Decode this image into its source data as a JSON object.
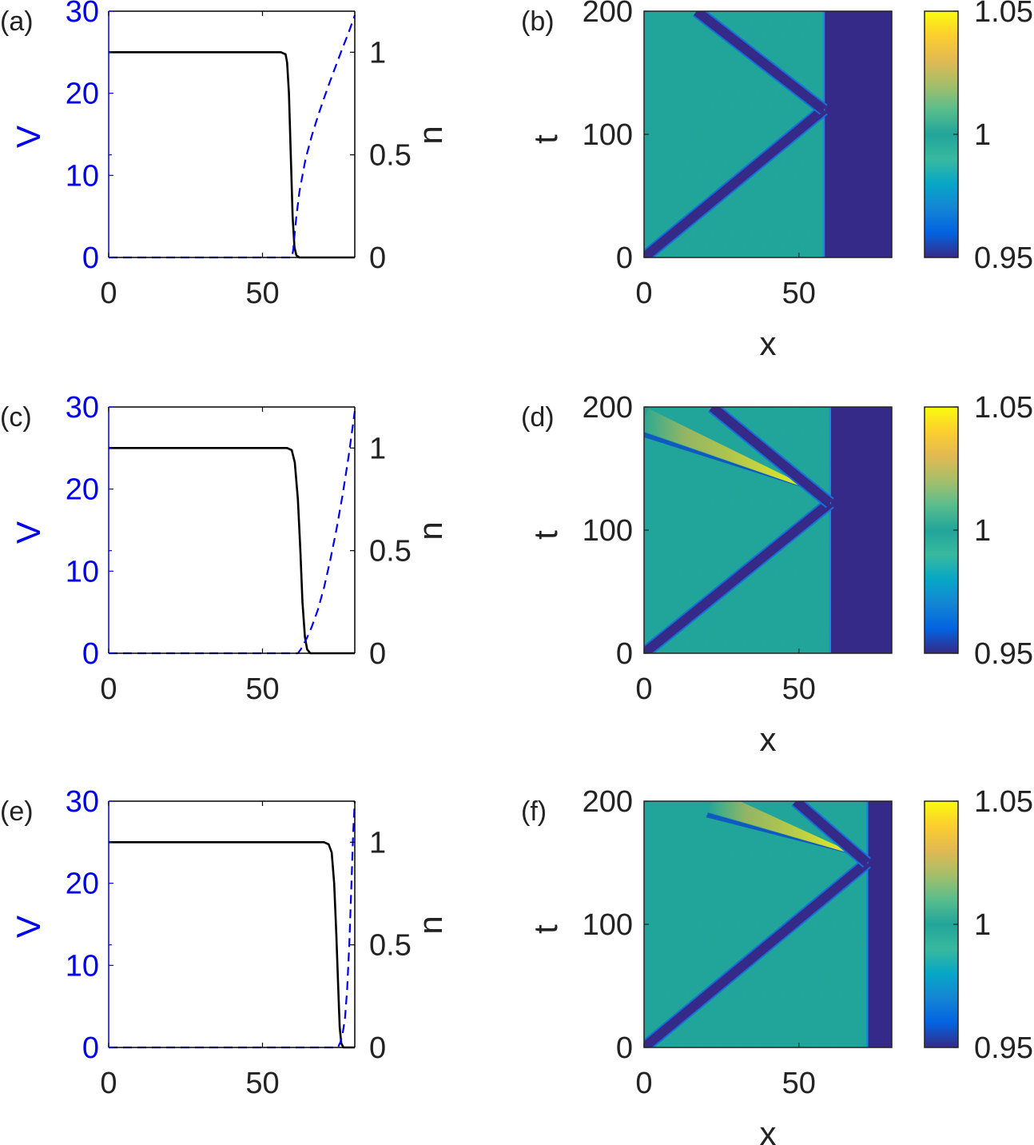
{
  "chart_data": [
    {
      "panel": "(a)",
      "type": "line",
      "ylabel_left": "V",
      "ylabel_right": "n",
      "xlim": [
        0,
        80
      ],
      "ylim_left": [
        0,
        30
      ],
      "ylim_right": [
        0,
        1.2
      ],
      "xticks": [
        "0",
        "50"
      ],
      "yticks_left": [
        "0",
        "10",
        "20",
        "30"
      ],
      "yticks_right": [
        "0",
        "0.5",
        "1"
      ],
      "left_axis_color": "#0000ee",
      "series": [
        {
          "axis": "right",
          "style": "solid",
          "color": "#000000",
          "x": [
            0,
            56,
            57.5,
            58,
            58.6,
            59.2,
            59.8,
            60.4,
            61,
            62,
            80
          ],
          "y": [
            1,
            1,
            0.99,
            0.95,
            0.8,
            0.5,
            0.2,
            0.05,
            0.01,
            0,
            0
          ]
        },
        {
          "axis": "left",
          "style": "dashed",
          "color": "#0000ee",
          "x": [
            0,
            59.6,
            60,
            60.5,
            61,
            62,
            64,
            66,
            68,
            70,
            72,
            74,
            76,
            78,
            80
          ],
          "y": [
            0,
            0,
            1,
            3,
            5,
            8,
            12,
            14.8,
            17.2,
            19.4,
            21.5,
            23.5,
            25.5,
            27.4,
            29.5
          ]
        }
      ]
    },
    {
      "panel": "(b)",
      "type": "heatmap",
      "xlabel": "x",
      "ylabel": "t",
      "xlim": [
        0,
        80
      ],
      "ylim": [
        0,
        200
      ],
      "xticks": [
        "0",
        "50"
      ],
      "yticks": [
        "0",
        "100",
        "200"
      ],
      "colorbar": {
        "range": [
          0.95,
          1.05
        ],
        "ticks": [
          "0.95",
          "1",
          "1.05"
        ]
      },
      "background_color": "#21a59a",
      "low_region": {
        "x_from": 58,
        "x_to": 80,
        "color": "#352a87"
      },
      "incident_front": {
        "t_start": 0,
        "t_end": 120,
        "x_start": 0,
        "x_end": 58
      },
      "reflected_front": {
        "t_start": 120,
        "t_end": 200,
        "x_start": 58,
        "x_end": 17
      },
      "bright_band": null
    },
    {
      "panel": "(c)",
      "type": "line",
      "ylabel_left": "V",
      "ylabel_right": "n",
      "xlim": [
        0,
        80
      ],
      "ylim_left": [
        0,
        30
      ],
      "ylim_right": [
        0,
        1.2
      ],
      "xticks": [
        "0",
        "50"
      ],
      "yticks_left": [
        "0",
        "10",
        "20",
        "30"
      ],
      "yticks_right": [
        "0",
        "0.5",
        "1"
      ],
      "left_axis_color": "#0000ee",
      "series": [
        {
          "axis": "right",
          "style": "solid",
          "color": "#000000",
          "x": [
            0,
            58,
            59.5,
            60.5,
            61.5,
            62.3,
            63,
            63.8,
            64.5,
            65.5,
            80
          ],
          "y": [
            1,
            1,
            0.99,
            0.93,
            0.75,
            0.5,
            0.25,
            0.08,
            0.02,
            0,
            0
          ]
        },
        {
          "axis": "left",
          "style": "dashed",
          "color": "#0000ee",
          "x": [
            0,
            61.5,
            62.5,
            63.5,
            64.5,
            66,
            68,
            70,
            72,
            74,
            76,
            78,
            80
          ],
          "y": [
            0,
            0,
            0.5,
            1.2,
            1.9,
            3.2,
            5.3,
            8.0,
            11.3,
            15.0,
            19.2,
            24.0,
            29.5
          ]
        }
      ]
    },
    {
      "panel": "(d)",
      "type": "heatmap",
      "xlabel": "x",
      "ylabel": "t",
      "xlim": [
        0,
        80
      ],
      "ylim": [
        0,
        200
      ],
      "xticks": [
        "0",
        "50"
      ],
      "yticks": [
        "0",
        "100",
        "200"
      ],
      "colorbar": {
        "range": [
          0.95,
          1.05
        ],
        "ticks": [
          "0.95",
          "1",
          "1.05"
        ]
      },
      "background_color": "#21a59a",
      "low_region": {
        "x_from": 60,
        "x_to": 80,
        "color": "#352a87"
      },
      "incident_front": {
        "t_start": 0,
        "t_end": 122,
        "x_start": 0,
        "x_end": 60
      },
      "reflected_front": {
        "t_start": 122,
        "t_end": 200,
        "x_start": 60,
        "x_end": 22
      },
      "bright_band": {
        "from": [
          57,
          130
        ],
        "to": [
          0,
          190
        ]
      }
    },
    {
      "panel": "(e)",
      "type": "line",
      "ylabel_left": "V",
      "ylabel_right": "n",
      "xlim": [
        0,
        80
      ],
      "ylim_left": [
        0,
        30
      ],
      "ylim_right": [
        0,
        1.2
      ],
      "xticks": [
        "0",
        "50"
      ],
      "yticks_left": [
        "0",
        "10",
        "20",
        "30"
      ],
      "yticks_right": [
        "0",
        "0.5",
        "1"
      ],
      "left_axis_color": "#0000ee",
      "series": [
        {
          "axis": "right",
          "style": "solid",
          "color": "#000000",
          "x": [
            0,
            70,
            71.5,
            72.5,
            73.3,
            74,
            74.6,
            75.1,
            75.6,
            76.3,
            80
          ],
          "y": [
            1,
            1,
            0.99,
            0.95,
            0.8,
            0.55,
            0.3,
            0.1,
            0.02,
            0,
            0
          ]
        },
        {
          "axis": "left",
          "style": "dashed",
          "color": "#0000ee",
          "x": [
            0,
            74.5,
            75.3,
            76,
            76.8,
            77.5,
            78.2,
            79,
            79.5,
            80
          ],
          "y": [
            0,
            0,
            0.6,
            1.6,
            3.5,
            7.0,
            12.5,
            21.0,
            26.5,
            30
          ]
        }
      ]
    },
    {
      "panel": "(f)",
      "type": "heatmap",
      "xlabel": "x",
      "ylabel": "t",
      "xlim": [
        0,
        80
      ],
      "ylim": [
        0,
        200
      ],
      "xticks": [
        "0",
        "50"
      ],
      "yticks": [
        "0",
        "100",
        "200"
      ],
      "colorbar": {
        "range": [
          0.95,
          1.05
        ],
        "ticks": [
          "0.95",
          "1",
          "1.05"
        ]
      },
      "background_color": "#21a59a",
      "low_region": {
        "x_from": 72,
        "x_to": 80,
        "color": "#352a87"
      },
      "incident_front": {
        "t_start": 0,
        "t_end": 150,
        "x_start": 0,
        "x_end": 72
      },
      "reflected_front": {
        "t_start": 150,
        "t_end": 200,
        "x_start": 72,
        "x_end": 49
      },
      "bright_band": {
        "from": [
          70,
          155
        ],
        "to": [
          22,
          200
        ]
      }
    }
  ]
}
